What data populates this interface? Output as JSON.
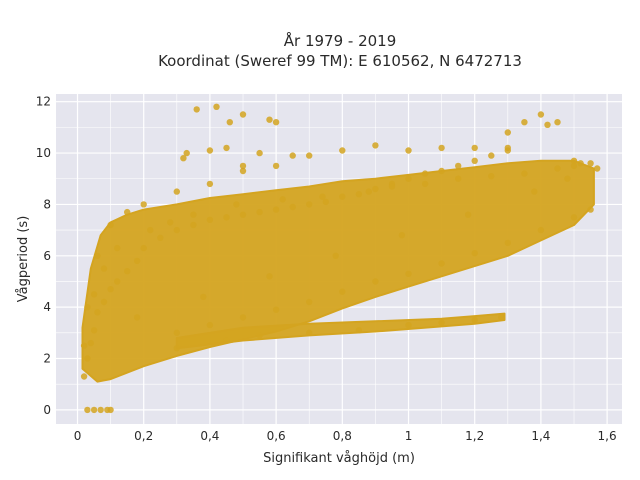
{
  "chart_data": {
    "type": "scatter",
    "title_lines": [
      "År 1979 - 2019",
      "Koordinat (Sweref 99 TM): E 610562, N 6472713"
    ],
    "xlabel": "Signifikant våghöjd (m)",
    "ylabel": "Vågperiod (s)",
    "xlim": [
      -0.065,
      1.645
    ],
    "ylim": [
      -0.55,
      12.3
    ],
    "x_ticks": [
      0,
      0.2,
      0.4,
      0.6,
      0.8,
      1,
      1.2,
      1.4,
      1.6
    ],
    "x_tick_labels": [
      "0",
      "0,2",
      "0,4",
      "0,6",
      "0,8",
      "1",
      "1,2",
      "1,4",
      "1,6"
    ],
    "y_ticks": [
      0,
      2,
      4,
      6,
      8,
      10,
      12
    ],
    "y_tick_labels": [
      "0",
      "2",
      "4",
      "6",
      "8",
      "10",
      "12"
    ],
    "grid": true,
    "colors": {
      "marker": "#d4a420",
      "plot_bg": "#e5e5ee",
      "grid": "#ffffff"
    },
    "series": [
      {
        "x": [
          0.03,
          0.05,
          0.07,
          0.09,
          0.1,
          0.02,
          0.03,
          0.04,
          0.05,
          0.06,
          0.08,
          0.1,
          0.12,
          0.15,
          0.18,
          0.2,
          0.25,
          0.3,
          0.35,
          0.4,
          0.45,
          0.5,
          0.55,
          0.6,
          0.65,
          0.7,
          0.75,
          0.8,
          0.85,
          0.9,
          0.95,
          1.0,
          1.05,
          1.1,
          1.15,
          1.2,
          1.25,
          1.3,
          0.3,
          0.45,
          0.55,
          0.7,
          0.85,
          1.0,
          1.1,
          1.2,
          1.28,
          0.3,
          0.4,
          0.5,
          0.6,
          0.7,
          0.8,
          0.9,
          1.0,
          1.1,
          1.2,
          1.3,
          1.4,
          1.5,
          1.55,
          0.36,
          0.42,
          0.5,
          0.46,
          0.58,
          0.6,
          0.33,
          0.32,
          0.55,
          0.65,
          0.45,
          0.4,
          0.5,
          1.3,
          1.4,
          1.42,
          1.45,
          1.3,
          1.35,
          1.5,
          1.55,
          1.57,
          1.2,
          1.1,
          1.0,
          0.9,
          0.8,
          0.7,
          0.6,
          0.5,
          0.4,
          0.3,
          0.2,
          0.15,
          0.1,
          0.06,
          0.03,
          0.02,
          0.05,
          0.08,
          0.12,
          0.22,
          0.28,
          0.35,
          0.48,
          0.62,
          0.74,
          0.88,
          0.95,
          1.05,
          1.15,
          1.25,
          1.35,
          1.45,
          1.5,
          1.52,
          1.48,
          1.38,
          1.18,
          0.98,
          0.78,
          0.58,
          0.38,
          0.18
        ],
        "y": [
          0,
          0,
          0,
          0,
          0,
          1.3,
          2.0,
          2.6,
          3.1,
          3.8,
          4.2,
          4.7,
          5.0,
          5.4,
          5.8,
          6.3,
          6.7,
          7.0,
          7.2,
          7.4,
          7.5,
          7.6,
          7.7,
          7.8,
          7.9,
          8.0,
          8.1,
          8.3,
          8.4,
          8.6,
          8.8,
          9.0,
          9.2,
          9.3,
          9.5,
          9.7,
          9.9,
          10.1,
          2.4,
          2.7,
          2.9,
          3.0,
          3.1,
          3.3,
          3.4,
          3.5,
          3.6,
          3.0,
          3.3,
          3.6,
          3.9,
          4.2,
          4.6,
          5.0,
          5.3,
          5.7,
          6.1,
          6.5,
          7.0,
          7.5,
          7.8,
          11.7,
          11.8,
          11.5,
          11.2,
          11.3,
          11.2,
          10.0,
          9.8,
          10.0,
          9.9,
          10.2,
          10.1,
          9.5,
          10.2,
          11.5,
          11.1,
          11.2,
          10.8,
          11.2,
          9.7,
          9.6,
          9.4,
          10.2,
          10.2,
          10.1,
          10.3,
          10.1,
          9.9,
          9.5,
          9.3,
          8.8,
          8.5,
          8.0,
          7.7,
          7.2,
          6.0,
          4.0,
          2.5,
          4.5,
          5.5,
          6.3,
          7.0,
          7.3,
          7.6,
          8.0,
          8.2,
          8.3,
          8.5,
          8.7,
          8.8,
          9.0,
          9.1,
          9.2,
          9.4,
          9.5,
          9.6,
          9.0,
          8.5,
          7.6,
          6.8,
          6.0,
          5.2,
          4.4,
          3.6
        ]
      }
    ]
  }
}
